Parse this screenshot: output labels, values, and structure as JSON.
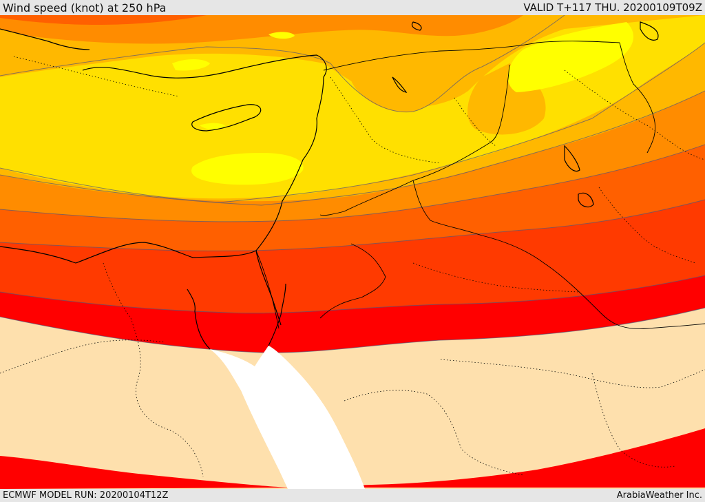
{
  "header": {
    "title": "Wind speed (knot) at 250 hPa",
    "valid": "VALID T+117 THU. 20200109T09Z"
  },
  "footer": {
    "model_run": "ECMWF MODEL RUN: 20200104T12Z",
    "credit": "ArabiaWeather Inc."
  },
  "colors": {
    "band_light_yellow": "#ffff00",
    "band_yellow": "#ffe000",
    "band_amber": "#ffb800",
    "band_orange": "#ff8c00",
    "band_dark_orange": "#ff6000",
    "band_red_orange": "#ff3a00",
    "band_red": "#ff0000",
    "calm": "#fee0ad",
    "sea": "#ffffff",
    "border": "#000000"
  }
}
